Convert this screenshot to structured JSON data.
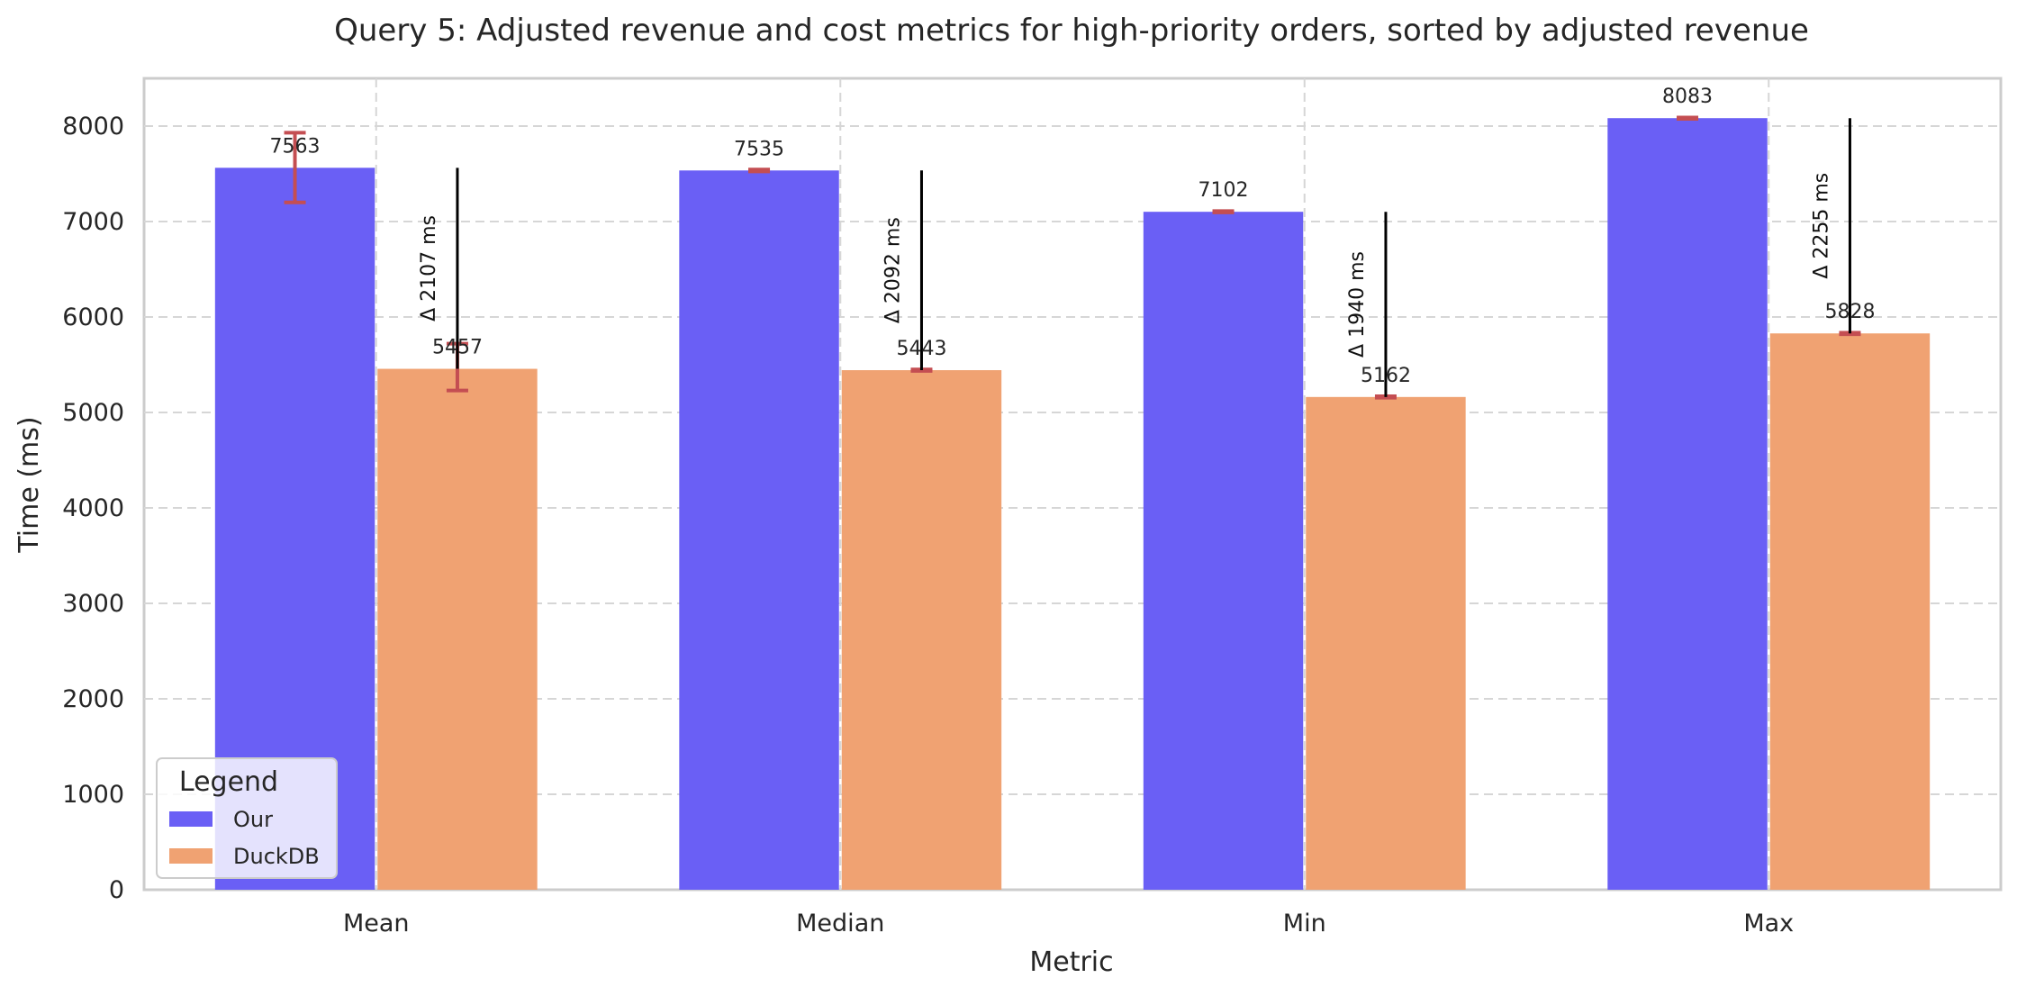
{
  "chart_data": {
    "type": "bar",
    "title": "Query 5: Adjusted revenue and cost metrics for high-priority orders, sorted by adjusted revenue",
    "xlabel": "Metric",
    "ylabel": "Time (ms)",
    "categories": [
      "Mean",
      "Median",
      "Min",
      "Max"
    ],
    "ylim": [
      0,
      8500
    ],
    "yticks": [
      0,
      1000,
      2000,
      3000,
      4000,
      5000,
      6000,
      7000,
      8000
    ],
    "grid": true,
    "series": [
      {
        "name": "Our",
        "color": "#6a5ff5",
        "values": [
          7563,
          7535,
          7102,
          8083
        ],
        "error": [
          [
            7200,
            7930
          ],
          [
            7525,
            7545
          ],
          [
            7095,
            7110
          ],
          [
            8075,
            8090
          ]
        ]
      },
      {
        "name": "DuckDB",
        "color": "#f0a272",
        "values": [
          5457,
          5443,
          5162,
          5828
        ],
        "error": [
          [
            5230,
            5720
          ],
          [
            5435,
            5450
          ],
          [
            5155,
            5170
          ],
          [
            5820,
            5835
          ]
        ]
      }
    ],
    "deltas": [
      {
        "label": "Δ 2107 ms",
        "from": 5457,
        "to": 7563
      },
      {
        "label": "Δ 2092 ms",
        "from": 5443,
        "to": 7535
      },
      {
        "label": "Δ 1940 ms",
        "from": 5162,
        "to": 7102
      },
      {
        "label": "Δ 2255 ms",
        "from": 5828,
        "to": 8083
      }
    ],
    "legend": {
      "title": "Legend",
      "position": "bottom-left"
    },
    "error_color": "#c44e52"
  }
}
